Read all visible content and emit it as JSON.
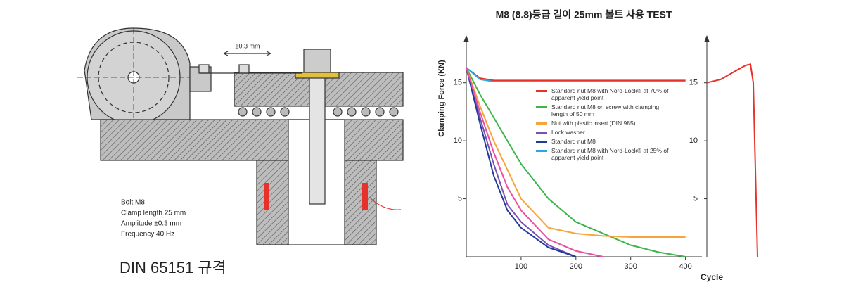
{
  "diagram": {
    "amplitude_arrow": "±0.3 mm",
    "specs": [
      "Bolt M8",
      "Clamp length 25 mm",
      "Amplitude ±0.3 mm",
      "Frequency 40 Hz"
    ],
    "caption": "DIN 65151 규격"
  },
  "chart_data": [
    {
      "type": "line",
      "title": "M8 (8.8)등급 길이 25mm 볼트 사용 TEST",
      "y_label": "Clamping Force (KN)",
      "x_label": "Cycle",
      "x": [
        0,
        25,
        50,
        75,
        100,
        150,
        200,
        250,
        300,
        350,
        400
      ],
      "xlim": [
        0,
        430
      ],
      "xticks": [
        100,
        200,
        300,
        400
      ],
      "ylim": [
        0,
        18.5
      ],
      "yticks": [
        5,
        10,
        15
      ],
      "series": [
        {
          "name": "Standard nut M8 with Nord-Lock® at 70% of apparent yield point",
          "color": "#e8312a",
          "values": [
            16.3,
            15.4,
            15.2,
            15.2,
            15.2,
            15.2,
            15.2,
            15.2,
            15.2,
            15.2,
            15.2
          ]
        },
        {
          "name": "Standard nut M8 on screw with clamping length of 50 mm",
          "color": "#3cb54a",
          "values": [
            16.3,
            14,
            12,
            10,
            8,
            5,
            3,
            2,
            1,
            0.4,
            0
          ]
        },
        {
          "name": "Nut with plastic insert (DIN 985)",
          "color": "#f7a43b",
          "values": [
            16.3,
            13,
            10,
            7.5,
            5,
            2.5,
            2,
            1.8,
            1.7,
            1.7,
            1.7
          ]
        },
        {
          "name": "Lock washer",
          "color": "#7b4fb5",
          "values": [
            16.3,
            12,
            8,
            4.5,
            3,
            1,
            0,
            null,
            null,
            null,
            null
          ]
        },
        {
          "name": "Standard nut M8",
          "color": "#1f3c9b",
          "values": [
            16.3,
            11.5,
            7,
            4,
            2.5,
            0.8,
            0,
            null,
            null,
            null,
            null
          ]
        },
        {
          "name": "Standard nut M8 with Nord-Lock® at 25% of apparent yield point",
          "color": "#29a8e0",
          "values": [
            16.3,
            15.3,
            15.1,
            15.1,
            15.1,
            15.1,
            15.1,
            15.1,
            15.1,
            15.1,
            15.1
          ]
        },
        {
          "color": "#ec4fa0",
          "values": [
            16.3,
            12.5,
            9,
            6,
            4,
            1.5,
            0.5,
            0,
            null,
            null,
            null
          ]
        }
      ]
    },
    {
      "type": "line",
      "x": [
        0,
        20,
        40,
        55,
        62,
        66,
        70,
        72
      ],
      "xlim": [
        0,
        75
      ],
      "ylim": [
        0,
        18.5
      ],
      "yticks": [
        5,
        10,
        15
      ],
      "series": [
        {
          "color": "#e8312a",
          "values": [
            15,
            15.3,
            16,
            16.5,
            16.6,
            15,
            5,
            0
          ]
        }
      ]
    }
  ]
}
